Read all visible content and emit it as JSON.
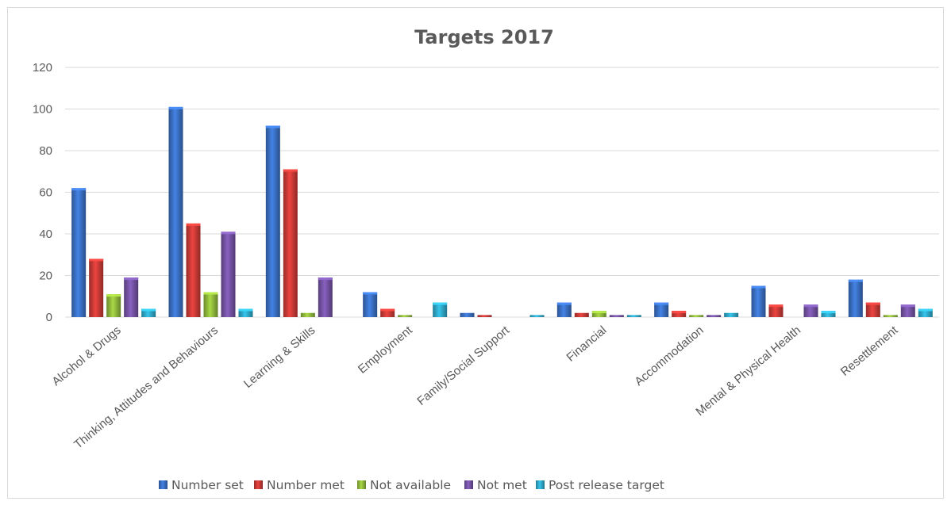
{
  "chart_data": {
    "type": "bar",
    "title": "Targets 2017",
    "xlabel": "",
    "ylabel": "",
    "ylim": [
      0,
      120
    ],
    "yticks": [
      0,
      20,
      40,
      60,
      80,
      100,
      120
    ],
    "grid": true,
    "legend_position": "bottom",
    "categories": [
      "Alcohol & Drugs",
      "Thinking, Attitudes and Behaviours",
      "Learning & Skills",
      "Employment",
      "Family/Social Support",
      "Financial",
      "Accommodation",
      "Mental & Physical Health",
      "Resettlement"
    ],
    "series": [
      {
        "name": "Number set",
        "color": "#3a6fc2",
        "values": [
          62,
          101,
          92,
          12,
          2,
          7,
          7,
          15,
          18
        ]
      },
      {
        "name": "Number met",
        "color": "#c93a36",
        "values": [
          28,
          45,
          71,
          4,
          1,
          2,
          3,
          6,
          7
        ]
      },
      {
        "name": "Not available",
        "color": "#8fb83c",
        "values": [
          11,
          12,
          2,
          1,
          0,
          3,
          1,
          0,
          1
        ]
      },
      {
        "name": "Not met",
        "color": "#7452a3",
        "values": [
          19,
          41,
          19,
          0,
          0,
          1,
          1,
          6,
          6
        ]
      },
      {
        "name": "Post release target",
        "color": "#2fa7c8",
        "values": [
          4,
          4,
          0,
          7,
          1,
          1,
          2,
          3,
          4
        ]
      }
    ]
  }
}
